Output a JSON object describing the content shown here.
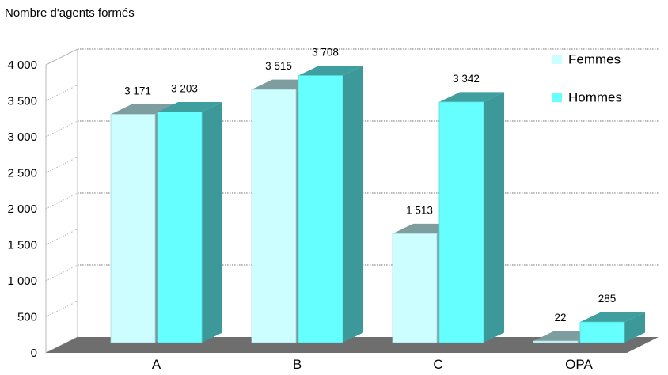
{
  "chart_data": {
    "type": "bar",
    "title": "Nombre d'agents formés",
    "categories": [
      "A",
      "B",
      "C",
      "OPA"
    ],
    "series": [
      {
        "name": "Femmes",
        "values": [
          3171,
          3515,
          1513,
          22
        ],
        "labels": [
          "3 171",
          "3 515",
          "1 513",
          "22"
        ],
        "color": "#ccfdff"
      },
      {
        "name": "Hommes",
        "values": [
          3203,
          3708,
          3342,
          285
        ],
        "labels": [
          "3 203",
          "3 708",
          "3 342",
          "285"
        ],
        "color": "#66ffff"
      }
    ],
    "y_ticks": [
      {
        "value": 0,
        "label": "0"
      },
      {
        "value": 500,
        "label": "500"
      },
      {
        "value": 1000,
        "label": "1 000"
      },
      {
        "value": 1500,
        "label": "1 500"
      },
      {
        "value": 2000,
        "label": "2 000"
      },
      {
        "value": 2500,
        "label": "2 500"
      },
      {
        "value": 3000,
        "label": "3 000"
      },
      {
        "value": 3500,
        "label": "3 500"
      },
      {
        "value": 4000,
        "label": "4 000"
      }
    ],
    "ylim": [
      0,
      4000
    ],
    "grid": true,
    "legend_position": "top-right",
    "style": "3d-column"
  }
}
